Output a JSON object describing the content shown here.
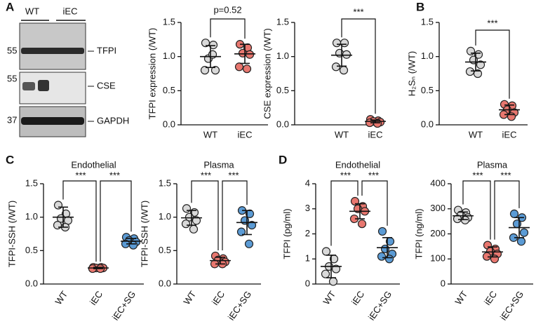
{
  "panel_labels": [
    "A",
    "B",
    "C",
    "D"
  ],
  "blot": {
    "lanes": [
      "WT",
      "iEC"
    ],
    "bands": [
      "TFPI",
      "CSE",
      "GAPDH"
    ],
    "markers": [
      "55",
      "55",
      "37"
    ]
  },
  "chart_data": [
    {
      "type": "dot",
      "ylabel": "TFPI expression (/WT)",
      "categories": [
        "WT",
        "iEC"
      ],
      "colors": [
        "#d9d9d9",
        "#e8776f"
      ],
      "values": [
        [
          1.2,
          1.17,
          0.97,
          0.8,
          0.8,
          1.03
        ],
        [
          1.18,
          1.13,
          1.05,
          1.03,
          0.85,
          0.82
        ]
      ],
      "mean": [
        1.0,
        1.04
      ],
      "sd": [
        0.16,
        0.14
      ],
      "ylim": [
        0,
        1.5
      ],
      "yticks": [
        {
          "value": 0,
          "label": "0.0"
        },
        0.5,
        {
          "value": 1,
          "label": "1.0"
        },
        1.5
      ],
      "annotations": [
        "p=0.52"
      ]
    },
    {
      "type": "dot",
      "ylabel": "CSE expression (/WT)",
      "categories": [
        "WT",
        "iEC"
      ],
      "colors": [
        "#d9d9d9",
        "#e8776f"
      ],
      "values": [
        [
          1.2,
          1.2,
          1.05,
          1.03,
          0.85,
          0.8
        ],
        [
          0.08,
          0.06,
          0.05,
          0.04,
          0.03,
          0.02
        ]
      ],
      "mean": [
        1.02,
        0.05
      ],
      "sd": [
        0.16,
        0.02
      ],
      "ylim": [
        0,
        1.5
      ],
      "yticks": [
        {
          "value": 0,
          "label": "0.0"
        },
        0.5,
        {
          "value": 1,
          "label": "1.0"
        },
        1.5
      ],
      "annotations": [
        "***"
      ]
    },
    {
      "type": "dot",
      "ylabel": "H₂Sₙ (/WT)",
      "categories": [
        "WT",
        "iEC"
      ],
      "colors": [
        "#d9d9d9",
        "#e8776f"
      ],
      "values": [
        [
          1.08,
          1.03,
          0.95,
          0.88,
          0.78,
          0.75
        ],
        [
          0.3,
          0.28,
          0.22,
          0.18,
          0.15,
          0.12
        ]
      ],
      "mean": [
        0.92,
        0.22
      ],
      "sd": [
        0.13,
        0.07
      ],
      "ylim": [
        0,
        1.5
      ],
      "yticks": [
        {
          "value": 0,
          "label": "0.0"
        },
        0.5,
        {
          "value": 1,
          "label": "1.0"
        },
        1.5
      ],
      "annotations": [
        "***"
      ]
    },
    {
      "type": "dot",
      "title": "Endothelial",
      "ylabel": "TFPI-SSH (/WT)",
      "categories": [
        "WT",
        "iEC",
        "iEC+SG"
      ],
      "colors": [
        "#d9d9d9",
        "#e8776f",
        "#5b9bd5"
      ],
      "values": [
        [
          1.18,
          1.05,
          0.98,
          0.95,
          0.88,
          0.85
        ],
        [
          0.25,
          0.25,
          0.24,
          0.24,
          0.23,
          0.23
        ],
        [
          0.7,
          0.68,
          0.65,
          0.63,
          0.6,
          0.58
        ]
      ],
      "mean": [
        1.0,
        0.24,
        0.64
      ],
      "sd": [
        0.15,
        0.01,
        0.04
      ],
      "ylim": [
        0,
        1.5
      ],
      "yticks": [
        {
          "value": 0,
          "label": "0.0"
        },
        0.5,
        {
          "value": 1,
          "label": "1.0"
        },
        1.5
      ],
      "annotations": [
        "***",
        "***"
      ]
    },
    {
      "type": "dot",
      "title": "Plasma",
      "ylabel": "TFPI-SSH (/WT)",
      "categories": [
        "WT",
        "iEC",
        "iEC+SG"
      ],
      "colors": [
        "#d9d9d9",
        "#e8776f",
        "#5b9bd5"
      ],
      "values": [
        [
          1.13,
          1.07,
          1.0,
          0.95,
          0.9,
          0.82
        ],
        [
          0.42,
          0.38,
          0.36,
          0.33,
          0.3,
          0.3
        ],
        [
          1.1,
          1.05,
          0.95,
          0.88,
          0.78,
          0.6
        ]
      ],
      "mean": [
        0.99,
        0.35,
        0.92
      ],
      "sd": [
        0.11,
        0.05,
        0.18
      ],
      "ylim": [
        0,
        1.5
      ],
      "yticks": [
        {
          "value": 0,
          "label": "0.0"
        },
        0.5,
        {
          "value": 1,
          "label": "1.0"
        },
        1.5
      ],
      "annotations": [
        "***",
        "***"
      ]
    },
    {
      "type": "dot",
      "title": "Endothelial",
      "ylabel": "TFPI (pg/ml)",
      "categories": [
        "WT",
        "iEC",
        "iEC+SG"
      ],
      "colors": [
        "#d9d9d9",
        "#e8776f",
        "#5b9bd5"
      ],
      "values": [
        [
          1.3,
          1.0,
          0.7,
          0.6,
          0.4,
          0.1
        ],
        [
          3.3,
          3.1,
          3.0,
          2.9,
          2.6,
          2.4
        ],
        [
          2.1,
          1.7,
          1.4,
          1.2,
          1.1,
          1.0
        ]
      ],
      "mean": [
        0.7,
        2.9,
        1.45
      ],
      "sd": [
        0.45,
        0.3,
        0.4
      ],
      "ylim": [
        0,
        4
      ],
      "yticks": [
        0,
        1,
        2,
        3,
        4
      ],
      "annotations": [
        "***",
        "***"
      ]
    },
    {
      "type": "dot",
      "title": "Plasma",
      "ylabel": "TFPI (ng/ml)",
      "categories": [
        "WT",
        "iEC",
        "iEC+SG"
      ],
      "colors": [
        "#d9d9d9",
        "#e8776f",
        "#5b9bd5"
      ],
      "values": [
        [
          295,
          285,
          275,
          265,
          260,
          255
        ],
        [
          155,
          140,
          130,
          120,
          110,
          100
        ],
        [
          280,
          265,
          240,
          205,
          185,
          170
        ]
      ],
      "mean": [
        272,
        128,
        225
      ],
      "sd": [
        15,
        20,
        40
      ],
      "ylim": [
        0,
        400
      ],
      "yticks": [
        0,
        100,
        200,
        300,
        400
      ],
      "annotations": [
        "***",
        "***"
      ]
    }
  ]
}
